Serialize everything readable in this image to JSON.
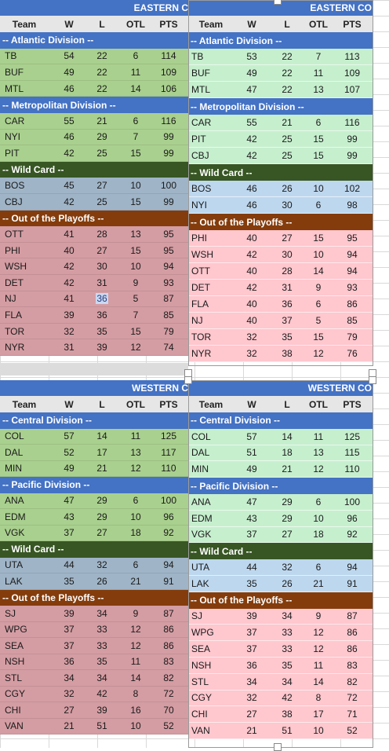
{
  "columns": [
    "Team",
    "W",
    "L",
    "OTL",
    "PTS"
  ],
  "tables": [
    {
      "id": "left-east",
      "banner": "EASTERN C",
      "style": "muted",
      "sections": [
        {
          "label": "-- Atlantic Division --",
          "kind": "division",
          "rows": [
            [
              "TB",
              "54",
              "22",
              "6",
              "114"
            ],
            [
              "BUF",
              "49",
              "22",
              "11",
              "109"
            ],
            [
              "MTL",
              "46",
              "22",
              "14",
              "106"
            ]
          ]
        },
        {
          "label": "-- Metropolitan Division --",
          "kind": "division",
          "rows": [
            [
              "CAR",
              "55",
              "21",
              "6",
              "116"
            ],
            [
              "NYI",
              "46",
              "29",
              "7",
              "99"
            ],
            [
              "PIT",
              "42",
              "25",
              "15",
              "99"
            ]
          ]
        },
        {
          "label": "-- Wild Card --",
          "kind": "wildcard",
          "rows": [
            [
              "BOS",
              "45",
              "27",
              "10",
              "100"
            ],
            [
              "CBJ",
              "42",
              "25",
              "15",
              "99"
            ]
          ]
        },
        {
          "label": "-- Out of the Playoffs --",
          "kind": "out",
          "rows": [
            [
              "OTT",
              "41",
              "28",
              "13",
              "95"
            ],
            [
              "PHI",
              "40",
              "27",
              "15",
              "95"
            ],
            [
              "WSH",
              "42",
              "30",
              "10",
              "94"
            ],
            [
              "DET",
              "42",
              "31",
              "9",
              "93"
            ],
            [
              "NJ",
              "41",
              "36",
              "5",
              "87"
            ],
            [
              "FLA",
              "39",
              "36",
              "7",
              "85"
            ],
            [
              "TOR",
              "32",
              "35",
              "15",
              "79"
            ],
            [
              "NYR",
              "31",
              "39",
              "12",
              "74"
            ]
          ]
        }
      ]
    },
    {
      "id": "right-east",
      "banner": "EASTERN CO",
      "style": "bright",
      "sections": [
        {
          "label": "-- Atlantic Division --",
          "kind": "division",
          "rows": [
            [
              "TB",
              "53",
              "22",
              "7",
              "113"
            ],
            [
              "BUF",
              "49",
              "22",
              "11",
              "109"
            ],
            [
              "MTL",
              "47",
              "22",
              "13",
              "107"
            ]
          ]
        },
        {
          "label": "-- Metropolitan Division --",
          "kind": "division",
          "rows": [
            [
              "CAR",
              "55",
              "21",
              "6",
              "116"
            ],
            [
              "PIT",
              "42",
              "25",
              "15",
              "99"
            ],
            [
              "CBJ",
              "42",
              "25",
              "15",
              "99"
            ]
          ]
        },
        {
          "label": "-- Wild Card --",
          "kind": "wildcard",
          "rows": [
            [
              "BOS",
              "46",
              "26",
              "10",
              "102"
            ],
            [
              "NYI",
              "46",
              "30",
              "6",
              "98"
            ]
          ]
        },
        {
          "label": "-- Out of the Playoffs --",
          "kind": "out",
          "rows": [
            [
              "PHI",
              "40",
              "27",
              "15",
              "95"
            ],
            [
              "WSH",
              "42",
              "30",
              "10",
              "94"
            ],
            [
              "OTT",
              "40",
              "28",
              "14",
              "94"
            ],
            [
              "DET",
              "42",
              "31",
              "9",
              "93"
            ],
            [
              "FLA",
              "40",
              "36",
              "6",
              "86"
            ],
            [
              "NJ",
              "40",
              "37",
              "5",
              "85"
            ],
            [
              "TOR",
              "32",
              "35",
              "15",
              "79"
            ],
            [
              "NYR",
              "32",
              "38",
              "12",
              "76"
            ]
          ]
        }
      ]
    },
    {
      "id": "left-west",
      "banner": "WESTERN C",
      "style": "muted",
      "sections": [
        {
          "label": "-- Central Division --",
          "kind": "division",
          "rows": [
            [
              "COL",
              "57",
              "14",
              "11",
              "125"
            ],
            [
              "DAL",
              "52",
              "17",
              "13",
              "117"
            ],
            [
              "MIN",
              "49",
              "21",
              "12",
              "110"
            ]
          ]
        },
        {
          "label": "-- Pacific Division --",
          "kind": "division",
          "rows": [
            [
              "ANA",
              "47",
              "29",
              "6",
              "100"
            ],
            [
              "EDM",
              "43",
              "29",
              "10",
              "96"
            ],
            [
              "VGK",
              "37",
              "27",
              "18",
              "92"
            ]
          ]
        },
        {
          "label": "-- Wild Card --",
          "kind": "wildcard",
          "rows": [
            [
              "UTA",
              "44",
              "32",
              "6",
              "94"
            ],
            [
              "LAK",
              "35",
              "26",
              "21",
              "91"
            ]
          ]
        },
        {
          "label": "-- Out of the Playoffs --",
          "kind": "out",
          "rows": [
            [
              "SJ",
              "39",
              "34",
              "9",
              "87"
            ],
            [
              "WPG",
              "37",
              "33",
              "12",
              "86"
            ],
            [
              "SEA",
              "37",
              "33",
              "12",
              "86"
            ],
            [
              "NSH",
              "36",
              "35",
              "11",
              "83"
            ],
            [
              "STL",
              "34",
              "34",
              "14",
              "82"
            ],
            [
              "CGY",
              "32",
              "42",
              "8",
              "72"
            ],
            [
              "CHI",
              "27",
              "39",
              "16",
              "70"
            ],
            [
              "VAN",
              "21",
              "51",
              "10",
              "52"
            ]
          ]
        }
      ]
    },
    {
      "id": "right-west",
      "banner": "WESTERN CO",
      "style": "bright",
      "sections": [
        {
          "label": "-- Central Division --",
          "kind": "division",
          "rows": [
            [
              "COL",
              "57",
              "14",
              "11",
              "125"
            ],
            [
              "DAL",
              "51",
              "18",
              "13",
              "115"
            ],
            [
              "MIN",
              "49",
              "21",
              "12",
              "110"
            ]
          ]
        },
        {
          "label": "-- Pacific Division --",
          "kind": "division",
          "rows": [
            [
              "ANA",
              "47",
              "29",
              "6",
              "100"
            ],
            [
              "EDM",
              "43",
              "29",
              "10",
              "96"
            ],
            [
              "VGK",
              "37",
              "27",
              "18",
              "92"
            ]
          ]
        },
        {
          "label": "-- Wild Card --",
          "kind": "wildcard",
          "rows": [
            [
              "UTA",
              "44",
              "32",
              "6",
              "94"
            ],
            [
              "LAK",
              "35",
              "26",
              "21",
              "91"
            ]
          ]
        },
        {
          "label": "-- Out of the Playoffs --",
          "kind": "out",
          "rows": [
            [
              "SJ",
              "39",
              "34",
              "9",
              "87"
            ],
            [
              "WPG",
              "37",
              "33",
              "12",
              "86"
            ],
            [
              "SEA",
              "37",
              "33",
              "12",
              "86"
            ],
            [
              "NSH",
              "36",
              "35",
              "11",
              "83"
            ],
            [
              "STL",
              "34",
              "34",
              "14",
              "82"
            ],
            [
              "CGY",
              "32",
              "42",
              "8",
              "72"
            ],
            [
              "CHI",
              "27",
              "38",
              "17",
              "71"
            ],
            [
              "VAN",
              "21",
              "51",
              "10",
              "52"
            ]
          ]
        }
      ]
    }
  ],
  "selected_cell": {
    "table": "left-east",
    "team": "NJ",
    "column": "L",
    "value": "36"
  },
  "colors": {
    "banner": "#4472c4",
    "section_division": "#4472c4",
    "section_wildcard": "#375623",
    "section_out": "#843c0c",
    "muted_division_fill": "#a9d08e",
    "muted_wildcard_fill": "#9fb4c7",
    "muted_out_fill": "#d49da3",
    "bright_division_fill": "#c6efce",
    "bright_wildcard_fill": "#bdd7ee",
    "bright_out_fill": "#ffc7ce",
    "header_fill": "#e6e6e6"
  }
}
